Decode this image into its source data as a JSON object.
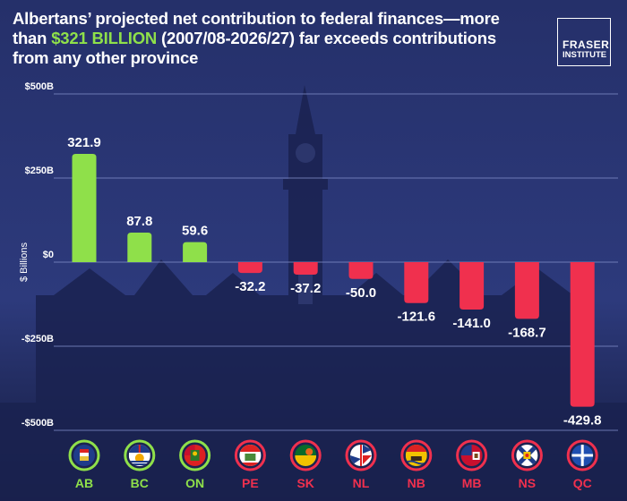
{
  "header": {
    "title_before": "Albertans’ projected net contribution to federal finances—more than ",
    "title_highlight": "$321 BILLION",
    "title_after": " (2007/08-2026/27) far exceeds contributions from any other province"
  },
  "logo": {
    "line1": "FRASER",
    "line2": "INSTITUTE"
  },
  "colors": {
    "background": "#1f2a5a",
    "positive": "#8fe04a",
    "negative": "#f0304e",
    "highlight": "#8fe04a",
    "grid": "#7f8cc7"
  },
  "chart_data": {
    "type": "bar",
    "categories": [
      "AB",
      "BC",
      "ON",
      "PE",
      "SK",
      "NL",
      "NB",
      "MB",
      "NS",
      "QC"
    ],
    "values": [
      321.9,
      87.8,
      59.6,
      -32.2,
      -37.2,
      -50.0,
      -121.6,
      -141.0,
      -168.7,
      -429.8
    ],
    "value_labels": [
      "321.9",
      "87.8",
      "59.6",
      "-32.2",
      "-37.2",
      "-50.0",
      "-121.6",
      "-141.0",
      "-168.7",
      "-429.8"
    ],
    "yticks": [
      500,
      250,
      0,
      -250,
      -500
    ],
    "ytick_labels": [
      "$500B",
      "$250B",
      "$0",
      "-$250B",
      "-$500B"
    ],
    "ylabel": "$ Billions",
    "xlabel": "",
    "ylim": [
      -500,
      500
    ],
    "grid": true,
    "legend": "none",
    "category_icons": [
      "alberta-flag-icon",
      "british-columbia-flag-icon",
      "ontario-flag-icon",
      "pei-flag-icon",
      "saskatchewan-flag-icon",
      "newfoundland-flag-icon",
      "new-brunswick-flag-icon",
      "manitoba-flag-icon",
      "nova-scotia-flag-icon",
      "quebec-flag-icon"
    ]
  }
}
